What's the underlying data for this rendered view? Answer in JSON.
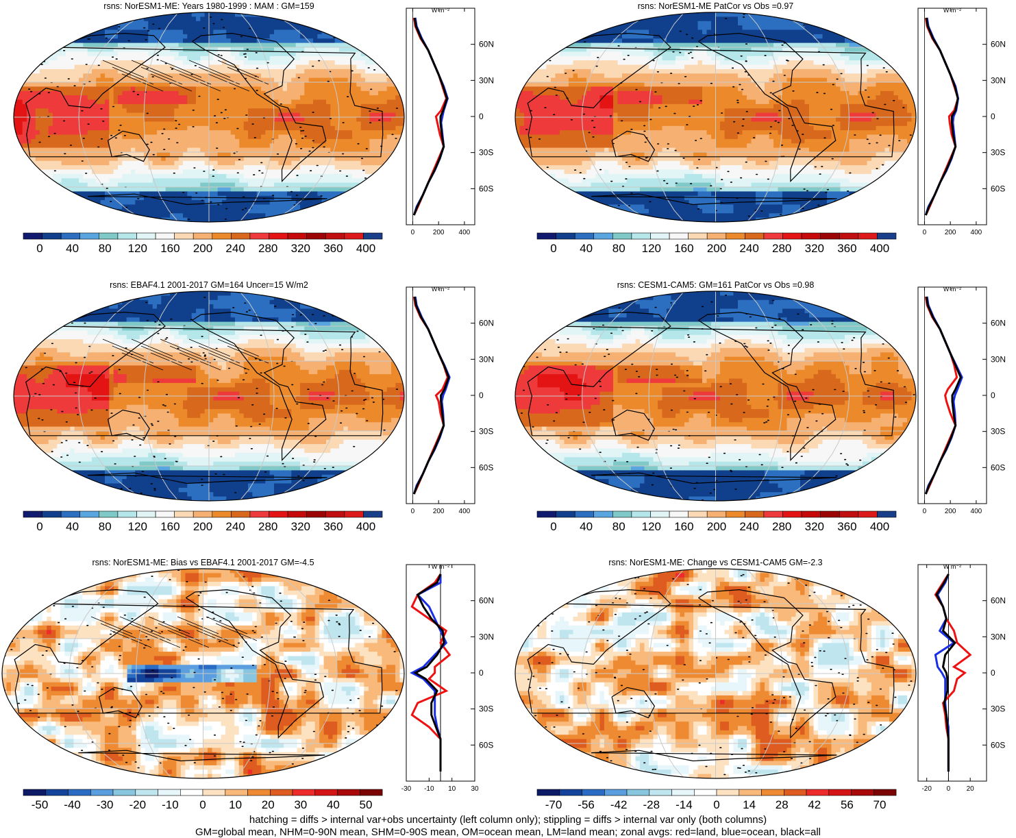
{
  "footer": {
    "line1": "hatching = diffs > internal var+obs uncertainty (left column only); stippling = diffs > internal var only (both columns)",
    "line2": "GM=global mean, NHM=0-90N mean, SHM=0-90S mean, OM=ocean mean, LM=land mean; zonal avgs: red=land, blue=ocean, black=all"
  },
  "colors": {
    "land": "#ee1111",
    "ocean": "#1a2ee6",
    "all": "#000000",
    "graticule": "#c9c9c9",
    "coast": "#000000",
    "field_palette": [
      "#101a6e",
      "#103f8c",
      "#2c6fc0",
      "#58a5e0",
      "#7fcac8",
      "#b5e6ea",
      "#e1f5f6",
      "#f7f7f7",
      "#fbd9b4",
      "#f6b072",
      "#ec8a2b",
      "#d8681c",
      "#ee3a3a",
      "#e41414",
      "#c60a0a",
      "#9b0505",
      "#c00f0f",
      "#dc1a1a",
      "#1a3f8a"
    ],
    "diff_palette": [
      "#0d1b66",
      "#13439a",
      "#2a6cc3",
      "#5a9ee0",
      "#88c5df",
      "#bfe5ee",
      "#e7f6fa",
      "#ffffff",
      "#fde2c2",
      "#f8b97a",
      "#ee8b32",
      "#df5c20",
      "#ee2b2b",
      "#d41515",
      "#a80808",
      "#7a0303"
    ]
  },
  "chart_data": [
    {
      "type": "heatmap",
      "title": "rsns: NorESM1-ME: Years 1980-1999 : MAM : GM=159",
      "colorbar_ticks": [
        "0",
        "40",
        "80",
        "120",
        "160",
        "200",
        "240",
        "280",
        "320",
        "360",
        "400"
      ],
      "zonal_axis_ticks": [
        "0",
        "200",
        "400"
      ],
      "zonal_axis_xlim": [
        -50,
        480
      ],
      "zonal_units": "W m⁻²",
      "lat_ticks": [
        "60N",
        "30N",
        "0",
        "30S",
        "60S"
      ],
      "series": [
        {
          "name": "land",
          "x": [
            10,
            20,
            60,
            120,
            160,
            200,
            230,
            260,
            220,
            180,
            190,
            210,
            240,
            200,
            160,
            120,
            80,
            40,
            10
          ],
          "y": [
            82,
            75,
            65,
            55,
            45,
            35,
            25,
            15,
            5,
            0,
            -5,
            -15,
            -25,
            -35,
            -45,
            -55,
            -65,
            -75,
            -82
          ]
        },
        {
          "name": "ocean",
          "x": [
            20,
            30,
            70,
            120,
            160,
            200,
            240,
            270,
            240,
            230,
            220,
            230,
            240,
            210,
            170,
            120,
            80,
            30,
            10
          ],
          "y": [
            82,
            75,
            65,
            55,
            45,
            35,
            25,
            15,
            5,
            0,
            -5,
            -15,
            -25,
            -35,
            -45,
            -55,
            -65,
            -75,
            -82
          ]
        },
        {
          "name": "all",
          "x": [
            15,
            25,
            65,
            120,
            160,
            200,
            235,
            265,
            235,
            215,
            215,
            225,
            240,
            208,
            168,
            120,
            80,
            35,
            10
          ],
          "y": [
            82,
            75,
            65,
            55,
            45,
            35,
            25,
            15,
            5,
            0,
            -5,
            -15,
            -25,
            -35,
            -45,
            -55,
            -65,
            -75,
            -82
          ]
        }
      ]
    },
    {
      "type": "heatmap",
      "title": "rsns: NorESM1-ME PatCor vs Obs =0.97",
      "colorbar_ticks": [
        "0",
        "40",
        "80",
        "120",
        "160",
        "200",
        "240",
        "280",
        "320",
        "360",
        "400"
      ],
      "zonal_axis_ticks": [
        "0",
        "200",
        "400"
      ],
      "zonal_axis_xlim": [
        -50,
        480
      ],
      "zonal_units": "W m⁻²",
      "lat_ticks": [
        "60N",
        "30N",
        "0",
        "30S",
        "60S"
      ],
      "series": [
        {
          "name": "land",
          "x": [
            10,
            20,
            60,
            120,
            160,
            200,
            230,
            260,
            230,
            190,
            195,
            210,
            240,
            200,
            160,
            120,
            80,
            40,
            10
          ],
          "y": [
            82,
            75,
            65,
            55,
            45,
            35,
            25,
            15,
            5,
            0,
            -5,
            -15,
            -25,
            -35,
            -45,
            -55,
            -65,
            -75,
            -82
          ]
        },
        {
          "name": "ocean",
          "x": [
            20,
            30,
            70,
            120,
            160,
            200,
            240,
            260,
            245,
            225,
            220,
            230,
            240,
            210,
            170,
            120,
            80,
            30,
            10
          ],
          "y": [
            82,
            75,
            65,
            55,
            45,
            35,
            25,
            15,
            5,
            0,
            -5,
            -15,
            -25,
            -35,
            -45,
            -55,
            -65,
            -75,
            -82
          ]
        },
        {
          "name": "all",
          "x": [
            15,
            25,
            65,
            120,
            160,
            200,
            235,
            258,
            240,
            212,
            212,
            222,
            240,
            206,
            166,
            120,
            80,
            35,
            10
          ],
          "y": [
            82,
            75,
            65,
            55,
            45,
            35,
            25,
            15,
            5,
            0,
            -5,
            -15,
            -25,
            -35,
            -45,
            -55,
            -65,
            -75,
            -82
          ]
        }
      ]
    },
    {
      "type": "heatmap",
      "title": "rsns: EBAF4.1 2001-2017 GM=164 Uncer=15 W/m2",
      "colorbar_ticks": [
        "0",
        "40",
        "80",
        "120",
        "160",
        "200",
        "240",
        "280",
        "320",
        "360",
        "400"
      ],
      "zonal_axis_ticks": [
        "0",
        "200",
        "400"
      ],
      "zonal_axis_xlim": [
        -50,
        480
      ],
      "zonal_units": "W m⁻²",
      "lat_ticks": [
        "60N",
        "30N",
        "0",
        "30S",
        "60S"
      ],
      "series": [
        {
          "name": "land",
          "x": [
            10,
            20,
            60,
            120,
            160,
            200,
            240,
            270,
            230,
            180,
            200,
            215,
            240,
            200,
            160,
            120,
            80,
            40,
            10
          ],
          "y": [
            82,
            75,
            65,
            55,
            45,
            35,
            25,
            15,
            5,
            0,
            -5,
            -15,
            -25,
            -35,
            -45,
            -55,
            -65,
            -75,
            -82
          ]
        },
        {
          "name": "ocean",
          "x": [
            20,
            30,
            70,
            120,
            160,
            200,
            245,
            285,
            255,
            235,
            225,
            235,
            240,
            210,
            170,
            120,
            80,
            30,
            10
          ],
          "y": [
            82,
            75,
            65,
            55,
            45,
            35,
            25,
            15,
            5,
            0,
            -5,
            -15,
            -25,
            -35,
            -45,
            -55,
            -65,
            -75,
            -82
          ]
        },
        {
          "name": "all",
          "x": [
            15,
            25,
            65,
            120,
            160,
            200,
            242,
            278,
            245,
            218,
            218,
            228,
            240,
            206,
            166,
            120,
            80,
            35,
            10
          ],
          "y": [
            82,
            75,
            65,
            55,
            45,
            35,
            25,
            15,
            5,
            0,
            -5,
            -15,
            -25,
            -35,
            -45,
            -55,
            -65,
            -75,
            -82
          ]
        }
      ]
    },
    {
      "type": "heatmap",
      "title": "rsns: CESM1-CAM5: GM=161 PatCor vs Obs =0.98",
      "colorbar_ticks": [
        "0",
        "40",
        "80",
        "120",
        "160",
        "200",
        "240",
        "280",
        "320",
        "360",
        "400"
      ],
      "zonal_axis_ticks": [
        "0",
        "200",
        "400"
      ],
      "zonal_axis_xlim": [
        -50,
        480
      ],
      "zonal_units": "W m⁻²",
      "lat_ticks": [
        "60N",
        "30N",
        "0",
        "30S",
        "60S"
      ],
      "series": [
        {
          "name": "land",
          "x": [
            10,
            20,
            60,
            120,
            160,
            200,
            230,
            250,
            180,
            160,
            170,
            200,
            240,
            200,
            160,
            120,
            80,
            40,
            10
          ],
          "y": [
            82,
            75,
            65,
            55,
            45,
            35,
            25,
            15,
            5,
            0,
            -5,
            -15,
            -25,
            -35,
            -45,
            -55,
            -65,
            -75,
            -82
          ]
        },
        {
          "name": "ocean",
          "x": [
            20,
            30,
            70,
            120,
            160,
            200,
            245,
            290,
            255,
            235,
            225,
            235,
            240,
            210,
            170,
            120,
            80,
            30,
            10
          ],
          "y": [
            82,
            75,
            65,
            55,
            45,
            35,
            25,
            15,
            5,
            0,
            -5,
            -15,
            -25,
            -35,
            -45,
            -55,
            -65,
            -75,
            -82
          ]
        },
        {
          "name": "all",
          "x": [
            15,
            25,
            65,
            120,
            160,
            200,
            240,
            280,
            240,
            215,
            215,
            225,
            240,
            206,
            166,
            120,
            80,
            35,
            10
          ],
          "y": [
            82,
            75,
            65,
            55,
            45,
            35,
            25,
            15,
            5,
            0,
            -5,
            -15,
            -25,
            -35,
            -45,
            -55,
            -65,
            -75,
            -82
          ]
        }
      ]
    },
    {
      "type": "heatmap",
      "title": "rsns: NorESM1-ME: Bias vs EBAF4.1 2001-2017 GM=-4.5",
      "colorbar_ticks": [
        "-50",
        "-40",
        "-30",
        "-20",
        "-10",
        "0",
        "10",
        "20",
        "30",
        "40",
        "50"
      ],
      "zonal_axis_ticks": [
        "-30",
        "-10",
        "10",
        "30"
      ],
      "zonal_axis_xlim": [
        -30,
        30
      ],
      "zonal_units": "W m⁻²",
      "lat_ticks": [
        "60N",
        "30N",
        "0",
        "30S",
        "60S"
      ],
      "series": [
        {
          "name": "land",
          "x": [
            0,
            -5,
            -20,
            -25,
            -10,
            5,
            0,
            8,
            -5,
            -5,
            -10,
            5,
            -20,
            -25,
            -10,
            0,
            0,
            0,
            0
          ],
          "y": [
            82,
            75,
            65,
            55,
            45,
            35,
            25,
            15,
            5,
            0,
            -5,
            -15,
            -25,
            -35,
            -45,
            -55,
            -65,
            -75,
            -82
          ]
        },
        {
          "name": "ocean",
          "x": [
            0,
            0,
            -20,
            -10,
            -5,
            0,
            5,
            -5,
            -15,
            -25,
            -15,
            -5,
            -5,
            -5,
            -3,
            0,
            0,
            0,
            0
          ],
          "y": [
            82,
            75,
            65,
            55,
            45,
            35,
            25,
            15,
            5,
            0,
            -5,
            -15,
            -25,
            -35,
            -45,
            -55,
            -65,
            -75,
            -82
          ]
        },
        {
          "name": "all",
          "x": [
            0,
            -3,
            -20,
            -15,
            -8,
            2,
            3,
            -3,
            -12,
            -22,
            -13,
            -3,
            -8,
            -8,
            -4,
            0,
            0,
            0,
            0
          ],
          "y": [
            82,
            75,
            65,
            55,
            45,
            35,
            25,
            15,
            5,
            0,
            -5,
            -15,
            -25,
            -35,
            -45,
            -55,
            -65,
            -75,
            -82
          ]
        }
      ]
    },
    {
      "type": "heatmap",
      "title": "rsns: NorESM1-ME: Change vs CESM1-CAM5 GM=-2.3",
      "colorbar_ticks": [
        "-70",
        "-56",
        "-42",
        "-28",
        "-14",
        "0",
        "14",
        "28",
        "42",
        "56",
        "70"
      ],
      "zonal_axis_ticks": [
        "-20",
        "0",
        "20"
      ],
      "zonal_axis_xlim": [
        -28,
        35
      ],
      "zonal_units": "W m⁻²",
      "lat_ticks": [
        "60N",
        "30N",
        "0",
        "30S",
        "60S"
      ],
      "series": [
        {
          "name": "land",
          "x": [
            0,
            -5,
            -12,
            -5,
            -2,
            5,
            8,
            20,
            5,
            15,
            8,
            5,
            -5,
            -3,
            -2,
            0,
            0,
            0,
            0
          ],
          "y": [
            82,
            75,
            65,
            55,
            45,
            35,
            25,
            15,
            5,
            0,
            -5,
            -15,
            -25,
            -35,
            -45,
            -55,
            -65,
            -75,
            -82
          ]
        },
        {
          "name": "ocean",
          "x": [
            0,
            -3,
            -10,
            -5,
            -2,
            -8,
            5,
            -12,
            -10,
            -6,
            -3,
            -3,
            -3,
            -2,
            0,
            0,
            0,
            0,
            0
          ],
          "y": [
            82,
            75,
            65,
            55,
            45,
            35,
            25,
            15,
            5,
            0,
            -5,
            -15,
            -25,
            -35,
            -45,
            -55,
            -65,
            -75,
            -82
          ]
        },
        {
          "name": "all",
          "x": [
            0,
            -4,
            -11,
            -5,
            -2,
            -5,
            6,
            -3,
            -5,
            -2,
            -1,
            -1,
            -4,
            -2,
            -1,
            0,
            0,
            0,
            0
          ],
          "y": [
            82,
            75,
            65,
            55,
            45,
            35,
            25,
            15,
            5,
            0,
            -5,
            -15,
            -25,
            -35,
            -45,
            -55,
            -65,
            -75,
            -82
          ]
        }
      ]
    }
  ]
}
